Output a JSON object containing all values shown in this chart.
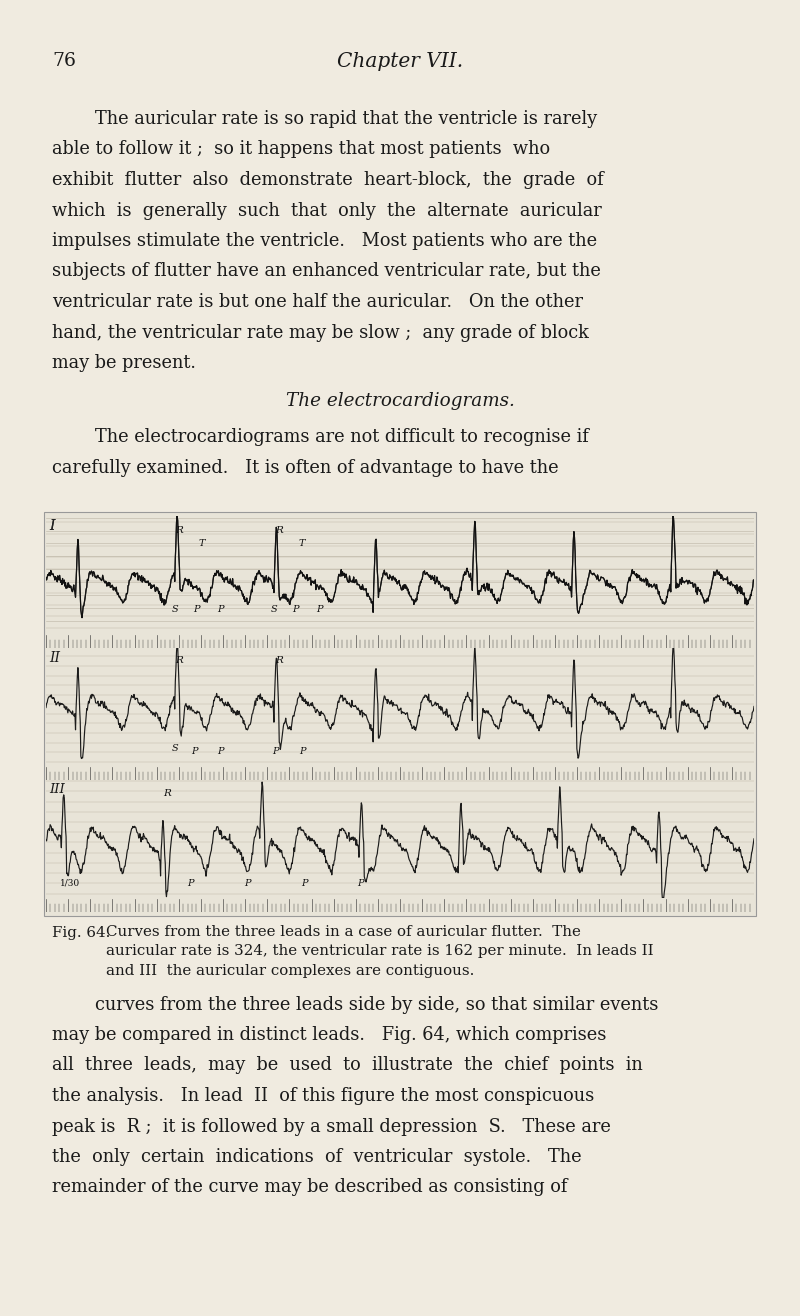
{
  "background_color": "#f0ebe0",
  "page_number": "76",
  "chapter_title": "Chapter VII.",
  "text_color": "#1a1a1a",
  "ecg_bg_color": "#e8e4d8",
  "ecg_line_color": "#b0a898",
  "ecg_trace_color": "#111111",
  "ticker_color": "#333333",
  "lines_para1": [
    "The auricular rate is so rapid that the ventricle is rarely",
    "able to follow it ;  so it happens that most patients  who",
    "exhibit  flutter  also  demonstrate  heart-block,  the  grade  of",
    "which  is  generally  such  that  only  the  alternate  auricular",
    "impulses stimulate the ventricle.   Most patients who are the",
    "subjects of flutter have an enhanced ventricular rate, but the",
    "ventricular rate is but one half the auricular.   On the other",
    "hand, the ventricular rate may be slow ;  any grade of block",
    "may be present."
  ],
  "section_title": "The electrocardiograms.",
  "lines_para2": [
    "The electrocardiograms are not difficult to recognise if",
    "carefully examined.   It is often of advantage to have the"
  ],
  "fig_caption_bold": "Fig. 64.",
  "fig_caption_rest1": "  Curves from the three leads in a case of auricular flutter.  The",
  "fig_caption_line2": "auricular rate is 324, the ventricular rate is 162 per minute.  In leads  II",
  "fig_caption_line3": "and  III  the auricular complexes are contiguous.",
  "lines_para3": [
    "curves from the three leads side by side, so that similar events",
    "may be compared in distinct leads.   Fig. 64, which comprises",
    "all  three  leads,  may  be  used  to  illustrate  the  chief  points  in",
    "the analysis.   In lead  II  of this figure the most conspicuous",
    "peak is  R ;  it is followed by a small depression  S.   These are",
    "the  only  certain  indications  of  ventricular  systole.   The",
    "remainder of the curve may be described as consisting of"
  ]
}
